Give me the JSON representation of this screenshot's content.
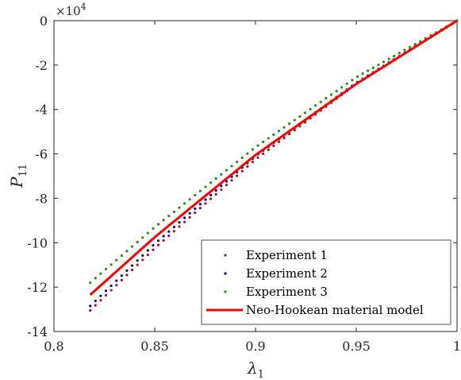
{
  "chart_data": {
    "type": "scatter",
    "xlabel": "λ",
    "xlabel_sub": "1",
    "ylabel": "P",
    "ylabel_sub": "11",
    "xlim": [
      0.8,
      1.0
    ],
    "ylim": [
      -140000,
      0
    ],
    "xticks": [
      0.8,
      0.85,
      0.9,
      0.95,
      1.0
    ],
    "xtick_labels": [
      "0.8",
      "0.85",
      "0.9",
      "0.95",
      "1"
    ],
    "yticks": [
      0,
      -20000,
      -40000,
      -60000,
      -80000,
      -100000,
      -120000,
      -140000
    ],
    "ytick_labels": [
      "0",
      "-2",
      "-4",
      "-6",
      "-8",
      "-10",
      "-12",
      "-14"
    ],
    "y_exponent_label": "×10",
    "y_exponent_power": "4",
    "grid": false,
    "legend_position": "bottom-right",
    "series": [
      {
        "name": "Experiment 1",
        "kind": "dotted",
        "color": "#A2142F",
        "x": [
          0.818,
          0.85,
          0.9,
          0.95,
          1.0
        ],
        "y": [
          -130500,
          -102500,
          -62500,
          -28500,
          0
        ]
      },
      {
        "name": "Experiment 2",
        "kind": "dotted",
        "color": "#0B0B8A",
        "x": [
          0.818,
          0.85,
          0.9,
          0.95,
          1.0
        ],
        "y": [
          -128500,
          -100500,
          -61000,
          -28000,
          0
        ]
      },
      {
        "name": "Experiment 3",
        "kind": "dotted",
        "color": "#2A8A1A",
        "x": [
          0.818,
          0.85,
          0.9,
          0.95,
          1.0
        ],
        "y": [
          -118000,
          -93000,
          -57000,
          -25500,
          0
        ]
      },
      {
        "name": "Neo-Hookean material model",
        "kind": "line",
        "color": "#FF0000",
        "x": [
          0.818,
          0.85,
          0.9,
          0.95,
          1.0
        ],
        "y": [
          -123500,
          -97500,
          -60500,
          -28500,
          0
        ]
      }
    ]
  }
}
